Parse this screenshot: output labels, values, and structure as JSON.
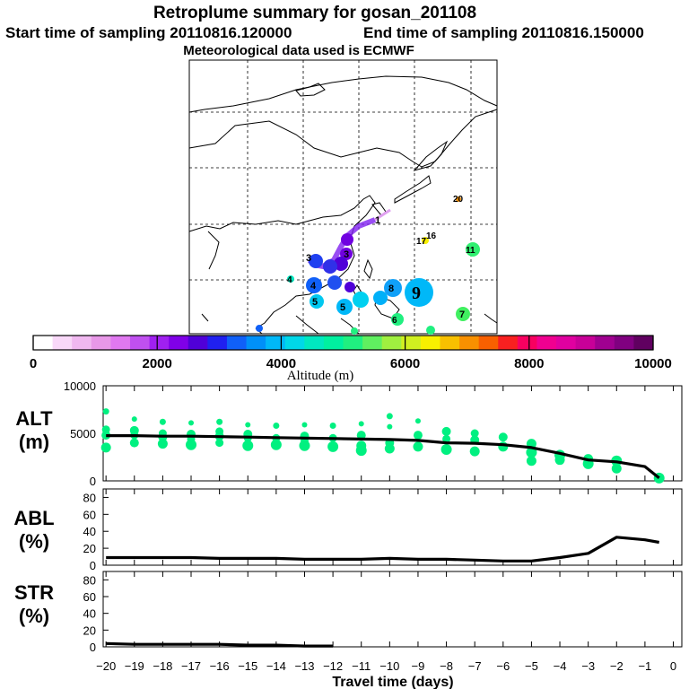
{
  "header": {
    "title": "Retroplume summary for gosan_201108",
    "start_label": "Start time of sampling 20110816.120000",
    "end_label": "End time of sampling 20110816.150000",
    "met_label": "Meteorological data used is ECMWF"
  },
  "colorbar": {
    "colors": [
      "#ffffff",
      "#f8d8f8",
      "#f0b8f0",
      "#e898e8",
      "#e078f0",
      "#c050f0",
      "#a020f0",
      "#8000e8",
      "#5000d8",
      "#2020f0",
      "#1060f8",
      "#0090f8",
      "#00b8f8",
      "#00d8e8",
      "#00e8c0",
      "#00f0a0",
      "#20f080",
      "#60f060",
      "#a0f040",
      "#d0f020",
      "#f8f000",
      "#f8c000",
      "#f89000",
      "#f86000",
      "#f82020",
      "#f80060",
      "#f00090",
      "#e000a0",
      "#c80098",
      "#a00090",
      "#800080",
      "#600060"
    ],
    "tick_labels": [
      "0",
      "2000",
      "4000",
      "6000",
      "8000",
      "10000"
    ],
    "tick_values": [
      0,
      2000,
      4000,
      6000,
      8000,
      10000
    ],
    "range": [
      0,
      10000
    ],
    "title": "Altitude (m)"
  },
  "map": {
    "plume_labels": [
      "1",
      "3",
      "3",
      "4",
      "4",
      "5",
      "5",
      "6",
      "7",
      "8",
      "9",
      "11",
      "16",
      "17",
      "20"
    ],
    "note": ""
  },
  "chart_data": [
    {
      "type": "line",
      "title": "ALT",
      "ylabel_top": "ALT",
      "ylabel_bottom": "(m)",
      "ylim": [
        0,
        10000
      ],
      "ytick_labels": [
        "0",
        "5000",
        "10000"
      ],
      "ytick_values": [
        0,
        5000,
        10000
      ],
      "x": [
        -20,
        -19,
        -18,
        -17,
        -16,
        -15,
        -14,
        -13,
        -12,
        -11,
        -10,
        -9,
        -8,
        -7,
        -6,
        -5,
        -4,
        -3,
        -2,
        -1,
        -0.5
      ],
      "series": [
        {
          "name": "median altitude",
          "values": [
            4750,
            4750,
            4700,
            4700,
            4650,
            4600,
            4550,
            4500,
            4450,
            4400,
            4350,
            4250,
            4000,
            3950,
            3800,
            3500,
            2900,
            2200,
            2000,
            1500,
            300
          ]
        }
      ],
      "clusters": [
        {
          "x": -20,
          "y": [
            7300,
            5400,
            4800,
            3500
          ]
        },
        {
          "x": -19,
          "y": [
            6500,
            5300,
            4800,
            4000
          ]
        },
        {
          "x": -18,
          "y": [
            6200,
            5000,
            4600,
            3900
          ]
        },
        {
          "x": -17,
          "y": [
            6100,
            4900,
            4400,
            3800
          ]
        },
        {
          "x": -16,
          "y": [
            6200,
            5200,
            4700,
            4000
          ]
        },
        {
          "x": -15,
          "y": [
            5900,
            4900,
            4500,
            3700
          ]
        },
        {
          "x": -14,
          "y": [
            5800,
            4500,
            3800
          ]
        },
        {
          "x": -13,
          "y": [
            5900,
            4700,
            4200,
            3700
          ]
        },
        {
          "x": -12,
          "y": [
            5800,
            4500,
            3600
          ]
        },
        {
          "x": -11,
          "y": [
            6000,
            4800,
            3700,
            3200
          ]
        },
        {
          "x": -10,
          "y": [
            6800,
            5700,
            4000,
            3400
          ]
        },
        {
          "x": -9,
          "y": [
            6300,
            4800,
            3600
          ]
        },
        {
          "x": -8,
          "y": [
            5200,
            4400,
            3300
          ]
        },
        {
          "x": -7,
          "y": [
            5000,
            4300,
            3100
          ]
        },
        {
          "x": -6,
          "y": [
            4600,
            3600
          ]
        },
        {
          "x": -5,
          "y": [
            3900,
            3000,
            2100
          ]
        },
        {
          "x": -4,
          "y": [
            2700,
            2200
          ]
        },
        {
          "x": -3,
          "y": [
            2300,
            1800
          ]
        },
        {
          "x": -2,
          "y": [
            2100,
            1300
          ]
        },
        {
          "x": -0.5,
          "y": [
            300
          ]
        }
      ]
    },
    {
      "type": "line",
      "title": "ABL",
      "ylabel_top": "ABL",
      "ylabel_bottom": "(%)",
      "ylim": [
        0,
        90
      ],
      "ytick_labels": [
        "0",
        "20",
        "40",
        "60",
        "80"
      ],
      "ytick_values": [
        0,
        20,
        40,
        60,
        80
      ],
      "x": [
        -20,
        -19,
        -18,
        -17,
        -16,
        -15,
        -14,
        -13,
        -12,
        -11,
        -10,
        -9,
        -8,
        -7,
        -6,
        -5,
        -4,
        -3,
        -2,
        -1,
        -0.5
      ],
      "series": [
        {
          "name": "ABL fraction",
          "values": [
            9,
            9,
            9,
            9,
            8,
            8,
            8,
            7,
            7,
            7,
            8,
            7,
            7,
            6,
            5,
            5,
            9,
            14,
            33,
            30,
            27
          ]
        }
      ]
    },
    {
      "type": "line",
      "title": "STR",
      "ylabel_top": "STR",
      "ylabel_bottom": "(%)",
      "ylim": [
        0,
        90
      ],
      "ytick_labels": [
        "0",
        "20",
        "40",
        "60",
        "80"
      ],
      "ytick_values": [
        0,
        20,
        40,
        60,
        80
      ],
      "x": [
        -20,
        -19,
        -18,
        -17,
        -16,
        -15,
        -14,
        -13,
        -12
      ],
      "series": [
        {
          "name": "stratospheric fraction",
          "values": [
            4,
            3,
            3,
            3,
            3,
            2,
            2,
            1,
            1
          ]
        }
      ],
      "xlabel": "Travel time (days)",
      "xtick_labels": [
        "−20",
        "−19",
        "−18",
        "−17",
        "−16",
        "−15",
        "−14",
        "−13",
        "−12",
        "−11",
        "−10",
        "−9",
        "−8",
        "−7",
        "−6",
        "−5",
        "−4",
        "−3",
        "−2",
        "−1",
        "0"
      ],
      "xtick_values": [
        -20,
        -19,
        -18,
        -17,
        -16,
        -15,
        -14,
        -13,
        -12,
        -11,
        -10,
        -9,
        -8,
        -7,
        -6,
        -5,
        -4,
        -3,
        -2,
        -1,
        0
      ]
    }
  ]
}
